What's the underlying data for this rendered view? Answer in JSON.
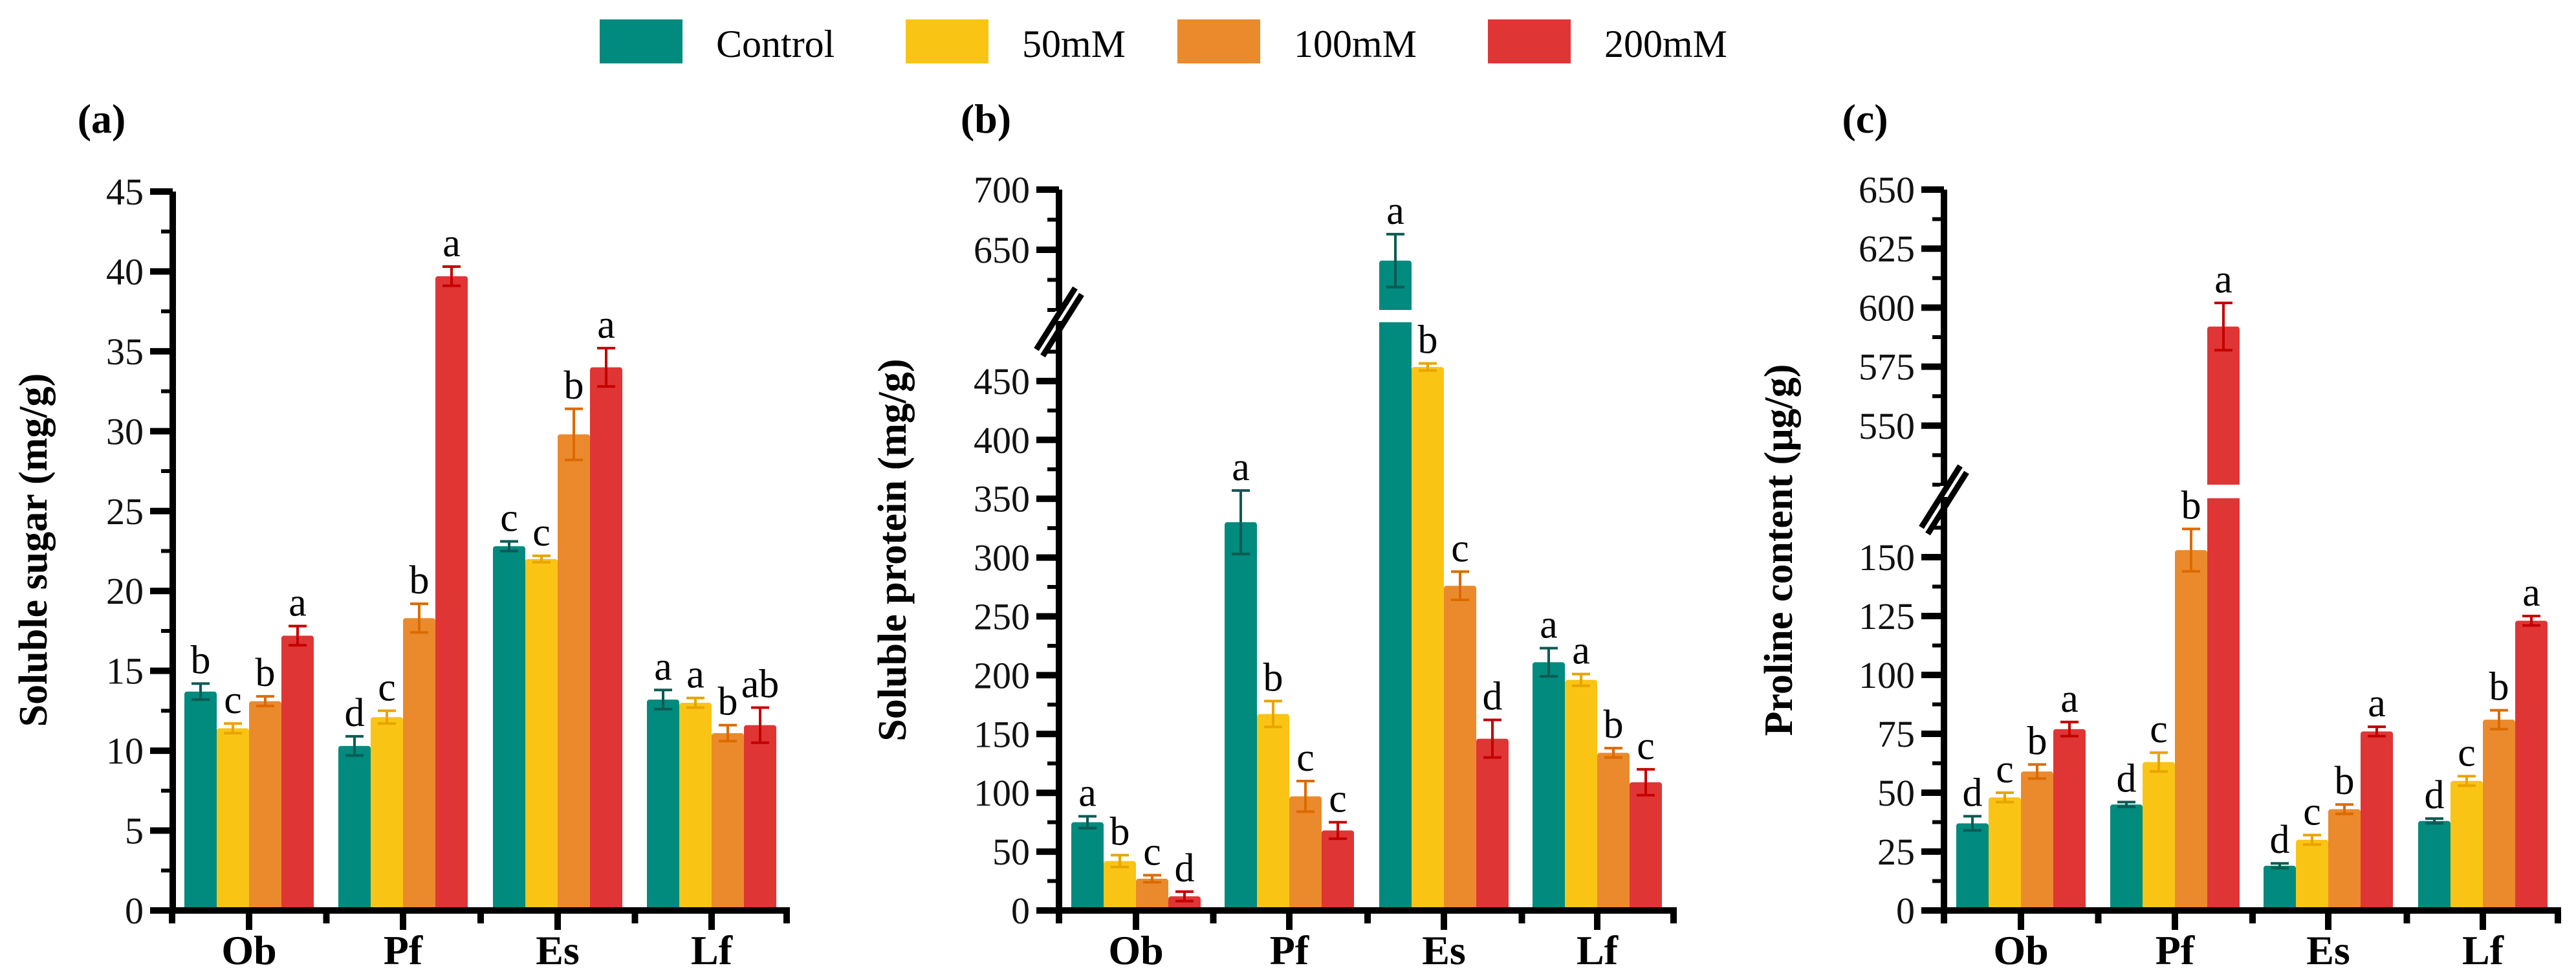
{
  "chart_data": {
    "legend": {
      "entries": [
        "Control",
        "50mM",
        "100mM",
        "200mM"
      ],
      "placement": "top-center"
    },
    "series_colors": [
      "#018a7e",
      "#fac414",
      "#ea8a2c",
      "#e03535"
    ],
    "error_colors": [
      "#0b5b53",
      "#e8a400",
      "#dc6a00",
      "#c40000"
    ],
    "panels": [
      {
        "type": "bar",
        "panel_label": "(a)",
        "ylabel": "Soluble sugar (mg/g)",
        "categories": [
          "Ob",
          "Pf",
          "Es",
          "Lf"
        ],
        "ylim": [
          0,
          45
        ],
        "yticks": [
          0,
          5,
          10,
          15,
          20,
          25,
          30,
          35,
          40,
          45
        ],
        "series": [
          {
            "name": "Control",
            "values": [
              13.7,
              10.3,
              22.8,
              13.2
            ],
            "errors": [
              0.5,
              0.6,
              0.3,
              0.6
            ],
            "letters": [
              "b",
              "d",
              "c",
              "a"
            ]
          },
          {
            "name": "50mM",
            "values": [
              11.4,
              12.1,
              22.0,
              13.0
            ],
            "errors": [
              0.3,
              0.4,
              0.2,
              0.3
            ],
            "letters": [
              "c",
              "c",
              "c",
              "a"
            ]
          },
          {
            "name": "100mM",
            "values": [
              13.1,
              18.3,
              29.8,
              11.1
            ],
            "errors": [
              0.3,
              0.9,
              1.6,
              0.5
            ],
            "letters": [
              "b",
              "b",
              "b",
              "b"
            ]
          },
          {
            "name": "200mM",
            "values": [
              17.2,
              39.7,
              34.0,
              11.6
            ],
            "errors": [
              0.6,
              0.6,
              1.2,
              1.1
            ],
            "letters": [
              "a",
              "a",
              "a",
              "ab"
            ]
          }
        ]
      },
      {
        "type": "bar",
        "panel_label": "(b)",
        "ylabel": "Soluble protein (mg/g)",
        "categories": [
          "Ob",
          "Pf",
          "Es",
          "Lf"
        ],
        "ylim": [
          0,
          700
        ],
        "axis_break": [
          500,
          600
        ],
        "yticks": [
          0,
          50,
          100,
          150,
          200,
          250,
          300,
          350,
          400,
          450,
          650,
          700
        ],
        "series": [
          {
            "name": "Control",
            "values": [
              75,
              330,
              641,
              211
            ],
            "errors": [
              5,
              27,
              22,
              12
            ],
            "letters": [
              "a",
              "a",
              "a",
              "a"
            ]
          },
          {
            "name": "50mM",
            "values": [
              42,
              167,
              462,
              196
            ],
            "errors": [
              5,
              11,
              3,
              5
            ],
            "letters": [
              "b",
              "b",
              "b",
              "a"
            ]
          },
          {
            "name": "100mM",
            "values": [
              27,
              97,
              276,
              134
            ],
            "errors": [
              3,
              13,
              12,
              4
            ],
            "letters": [
              "c",
              "c",
              "c",
              "b"
            ]
          },
          {
            "name": "200mM",
            "values": [
              12,
              68,
              146,
              109
            ],
            "errors": [
              4,
              7,
              16,
              11
            ],
            "letters": [
              "d",
              "c",
              "d",
              "c"
            ]
          }
        ]
      },
      {
        "type": "bar",
        "panel_label": "(c)",
        "ylabel": "Proline content (μg/g)",
        "categories": [
          "Ob",
          "Pf",
          "Es",
          "Lf"
        ],
        "ylim": [
          0,
          650
        ],
        "axis_break": [
          175,
          525
        ],
        "yticks": [
          0,
          25,
          50,
          75,
          100,
          125,
          150,
          550,
          575,
          600,
          625,
          650
        ],
        "series": [
          {
            "name": "Control",
            "values": [
              37,
              45,
              19,
              38
            ],
            "errors": [
              3,
              1,
              1,
              1
            ],
            "letters": [
              "d",
              "d",
              "d",
              "d"
            ]
          },
          {
            "name": "50mM",
            "values": [
              48,
              63,
              30,
              55
            ],
            "errors": [
              2,
              4,
              2,
              2
            ],
            "letters": [
              "c",
              "c",
              "c",
              "c"
            ]
          },
          {
            "name": "100mM",
            "values": [
              59,
              153,
              43,
              81
            ],
            "errors": [
              3,
              9,
              2,
              4
            ],
            "letters": [
              "b",
              "b",
              "b",
              "b"
            ]
          },
          {
            "name": "200mM",
            "values": [
              77,
              592,
              76,
              123
            ],
            "errors": [
              3,
              10,
              2,
              2
            ],
            "letters": [
              "a",
              "a",
              "a",
              "a"
            ]
          }
        ]
      }
    ]
  }
}
